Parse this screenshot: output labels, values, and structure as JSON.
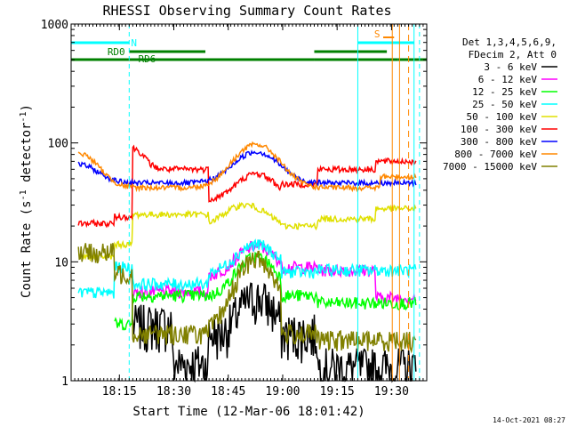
{
  "chart_data": {
    "type": "line",
    "title": "RHESSI Observing Summary Count Rates",
    "xlabel": "Start Time (12-Mar-06 18:01:42)",
    "ylabel": "Count Rate (s",
    "ylabel_sup1": "-1",
    "ylabel_mid": " detector",
    "ylabel_sup2": "-1",
    "ylabel_end": ")",
    "y_scale": "log",
    "ylim": [
      1,
      1000
    ],
    "xlim_minutes": [
      0,
      98
    ],
    "x_ticks": [
      {
        "minute": 13.3,
        "label": "18:15"
      },
      {
        "minute": 28.3,
        "label": "18:30"
      },
      {
        "minute": 43.3,
        "label": "18:45"
      },
      {
        "minute": 58.3,
        "label": "19:00"
      },
      {
        "minute": 73.3,
        "label": "19:15"
      },
      {
        "minute": 88.3,
        "label": "19:30"
      }
    ],
    "y_ticks": [
      {
        "value": 1,
        "label": "1"
      },
      {
        "value": 10,
        "label": "10"
      },
      {
        "value": 100,
        "label": "100"
      },
      {
        "value": 1000,
        "label": "1000"
      }
    ],
    "legend_header": [
      "Det 1,3,4,5,6,9,",
      "FDecim 2, Att 0"
    ],
    "legend_position": "right",
    "series": [
      {
        "name": "3 - 6 keV",
        "color": "#000000"
      },
      {
        "name": "6 - 12 keV",
        "color": "#ff00ff"
      },
      {
        "name": "12 - 25 keV",
        "color": "#00ff00"
      },
      {
        "name": "25 - 50 keV",
        "color": "#00ffff"
      },
      {
        "name": "50 - 100 keV",
        "color": "#e0e000"
      },
      {
        "name": "100 - 300 keV",
        "color": "#ff0000"
      },
      {
        "name": "300 - 800 keV",
        "color": "#0000ff"
      },
      {
        "name": "800 - 7000 keV",
        "color": "#ff8800"
      },
      {
        "name": "7000 - 15000 keV",
        "color": "#808000"
      }
    ],
    "flags": [
      {
        "label": "N",
        "color": "#00ffff"
      },
      {
        "label": "RD0",
        "color": "#008000"
      },
      {
        "label": "RD6",
        "color": "#008000"
      },
      {
        "label": "S",
        "color": "#ff8800"
      }
    ],
    "timestamp": "14-Oct-2021 08:27"
  }
}
